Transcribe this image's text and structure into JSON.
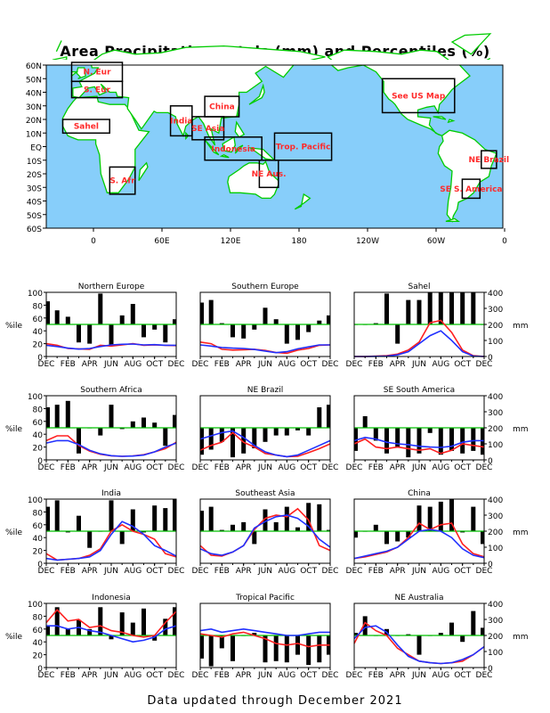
{
  "title": "Area Precipitation Totals (mm) and Percentiles (%)",
  "footer": "Data updated through December 2021",
  "colors": {
    "ocean": "#87cefa",
    "land": "#ffffff",
    "coast": "#00cc00",
    "region_box": "#000000",
    "region_label": "#ff2a2a",
    "bars": "#000000",
    "ref_line": "#00c000",
    "observed": "#ff2020",
    "normal": "#2030ff"
  },
  "map": {
    "lat_labels": [
      "60N",
      "50N",
      "40N",
      "30N",
      "20N",
      "10N",
      "EQ",
      "10S",
      "20S",
      "30S",
      "40S",
      "50S",
      "60S"
    ],
    "lon_labels": [
      "0",
      "60E",
      "120E",
      "180",
      "120W",
      "60W",
      "0"
    ],
    "regions": [
      {
        "label": "N. Eur",
        "lon": [
          -10,
          30
        ],
        "lat": [
          48,
          62
        ]
      },
      {
        "label": "S. Eur",
        "lon": [
          -10,
          30
        ],
        "lat": [
          36,
          48
        ]
      },
      {
        "label": "Sahel",
        "lon": [
          -17,
          20
        ],
        "lat": [
          10,
          20
        ]
      },
      {
        "label": "India",
        "lon": [
          68,
          85
        ],
        "lat": [
          8,
          30
        ]
      },
      {
        "label": "China",
        "lon": [
          95,
          122
        ],
        "lat": [
          22,
          37
        ]
      },
      {
        "label": "SE Asia",
        "lon": [
          85,
          110
        ],
        "lat": [
          5,
          22
        ]
      },
      {
        "label": "Indonesia",
        "lon": [
          95,
          140
        ],
        "lat": [
          -10,
          7
        ]
      },
      {
        "label": "Trop. Pacific",
        "lon": [
          150,
          195
        ],
        "lat": [
          -10,
          10
        ]
      },
      {
        "label": "NE Aus.",
        "lon": [
          138,
          153
        ],
        "lat": [
          -30,
          -10
        ]
      },
      {
        "label": "S. Afr",
        "lon": [
          20,
          40
        ],
        "lat": [
          -35,
          -15
        ]
      },
      {
        "label": "See US Map",
        "lon": [
          -125,
          -68
        ],
        "lat": [
          25,
          50
        ]
      },
      {
        "label": "NE Brazil",
        "lon": [
          -47,
          -35
        ],
        "lat": [
          -16,
          -3
        ]
      },
      {
        "label": "SE S. America",
        "lon": [
          -62,
          -48
        ],
        "lat": [
          -38,
          -24
        ]
      }
    ]
  },
  "axes": {
    "pct_ticks": [
      "0",
      "20",
      "40",
      "60",
      "80",
      "100"
    ],
    "mm_ticks": [
      "0",
      "100",
      "200",
      "300",
      "400"
    ],
    "pct_label": "%ile",
    "mm_label": "mm",
    "month_labels": [
      "DEC",
      "FEB",
      "APR",
      "JUN",
      "AUG",
      "OCT",
      "DEC"
    ]
  },
  "chart_data": [
    {
      "type": "bar",
      "title": "Northern Europe",
      "x": [
        "Dec",
        "Jan",
        "Feb",
        "Mar",
        "Apr",
        "May",
        "Jun",
        "Jul",
        "Aug",
        "Sep",
        "Oct",
        "Nov",
        "Dec"
      ],
      "percentile": [
        86,
        72,
        62,
        22,
        20,
        98,
        18,
        64,
        82,
        30,
        42,
        22,
        58
      ],
      "ylim_pct": [
        0,
        100
      ],
      "ylim_mm": [
        0,
        400
      ],
      "series": [
        {
          "name": "observed",
          "mm": [
            80,
            70,
            50,
            48,
            45,
            70,
            65,
            72,
            80,
            70,
            72,
            70,
            68
          ]
        },
        {
          "name": "normal",
          "mm": [
            70,
            62,
            52,
            46,
            50,
            62,
            72,
            76,
            78,
            72,
            74,
            70,
            70
          ]
        }
      ]
    },
    {
      "type": "bar",
      "title": "Southern Europe",
      "x": [
        "Dec",
        "Jan",
        "Feb",
        "Mar",
        "Apr",
        "May",
        "Jun",
        "Jul",
        "Aug",
        "Sep",
        "Oct",
        "Nov",
        "Dec"
      ],
      "percentile": [
        84,
        88,
        52,
        30,
        28,
        42,
        76,
        58,
        20,
        26,
        38,
        56,
        64
      ],
      "ylim_pct": [
        0,
        100
      ],
      "ylim_mm": [
        0,
        400
      ],
      "series": [
        {
          "name": "observed",
          "mm": [
            90,
            80,
            45,
            40,
            42,
            45,
            38,
            25,
            20,
            40,
            50,
            70,
            72
          ]
        },
        {
          "name": "normal",
          "mm": [
            72,
            65,
            56,
            52,
            50,
            44,
            34,
            24,
            30,
            48,
            60,
            72,
            72
          ]
        }
      ]
    },
    {
      "type": "bar",
      "title": "Sahel",
      "x": [
        "Dec",
        "Jan",
        "Feb",
        "Mar",
        "Apr",
        "May",
        "Jun",
        "Jul",
        "Aug",
        "Sep",
        "Oct",
        "Nov",
        "Dec"
      ],
      "percentile": [
        50,
        50,
        52,
        98,
        20,
        88,
        88,
        100,
        100,
        100,
        100,
        100,
        50
      ],
      "ylim_pct": [
        0,
        100
      ],
      "ylim_mm": [
        0,
        400
      ],
      "series": [
        {
          "name": "observed",
          "mm": [
            0,
            0,
            2,
            5,
            15,
            40,
            90,
            210,
            225,
            150,
            40,
            5,
            0
          ]
        },
        {
          "name": "normal",
          "mm": [
            0,
            0,
            1,
            3,
            10,
            30,
            80,
            130,
            160,
            100,
            30,
            3,
            0
          ]
        }
      ]
    },
    {
      "type": "bar",
      "title": "Southern Africa",
      "x": [
        "Dec",
        "Jan",
        "Feb",
        "Mar",
        "Apr",
        "May",
        "Jun",
        "Jul",
        "Aug",
        "Sep",
        "Oct",
        "Nov",
        "Dec"
      ],
      "percentile": [
        82,
        86,
        92,
        10,
        50,
        38,
        86,
        48,
        60,
        66,
        58,
        22,
        70
      ],
      "ylim_pct": [
        0,
        100
      ],
      "ylim_mm": [
        0,
        400
      ],
      "series": [
        {
          "name": "observed",
          "mm": [
            120,
            150,
            150,
            90,
            55,
            35,
            25,
            22,
            25,
            32,
            50,
            70,
            110
          ]
        },
        {
          "name": "normal",
          "mm": [
            105,
            120,
            120,
            95,
            60,
            38,
            26,
            22,
            24,
            30,
            50,
            80,
            105
          ]
        }
      ]
    },
    {
      "type": "bar",
      "title": "NE Brazil",
      "x": [
        "Dec",
        "Jan",
        "Feb",
        "Mar",
        "Apr",
        "May",
        "Jun",
        "Jul",
        "Aug",
        "Sep",
        "Oct",
        "Nov",
        "Dec"
      ],
      "percentile": [
        8,
        16,
        28,
        4,
        10,
        18,
        28,
        38,
        38,
        46,
        38,
        82,
        86
      ],
      "ylim_pct": [
        0,
        100
      ],
      "ylim_mm": [
        0,
        400
      ],
      "series": [
        {
          "name": "observed",
          "mm": [
            60,
            90,
            110,
            170,
            110,
            80,
            40,
            30,
            20,
            22,
            45,
            70,
            100
          ]
        },
        {
          "name": "normal",
          "mm": [
            130,
            150,
            170,
            180,
            140,
            90,
            50,
            30,
            20,
            30,
            60,
            90,
            120
          ]
        }
      ]
    },
    {
      "type": "bar",
      "title": "SE South America",
      "x": [
        "Dec",
        "Jan",
        "Feb",
        "Mar",
        "Apr",
        "May",
        "Jun",
        "Jul",
        "Aug",
        "Sep",
        "Oct",
        "Nov",
        "Dec"
      ],
      "percentile": [
        14,
        68,
        30,
        10,
        20,
        4,
        10,
        42,
        8,
        14,
        10,
        14,
        8
      ],
      "ylim_pct": [
        0,
        100
      ],
      "ylim_mm": [
        0,
        400
      ],
      "series": [
        {
          "name": "observed",
          "mm": [
            100,
            130,
            80,
            70,
            80,
            70,
            60,
            70,
            40,
            60,
            100,
            90,
            80
          ]
        },
        {
          "name": "normal",
          "mm": [
            120,
            140,
            130,
            110,
            100,
            95,
            85,
            80,
            78,
            85,
            110,
            120,
            120
          ]
        }
      ]
    },
    {
      "type": "bar",
      "title": "India",
      "x": [
        "Dec",
        "Jan",
        "Feb",
        "Mar",
        "Apr",
        "May",
        "Jun",
        "Jul",
        "Aug",
        "Sep",
        "Oct",
        "Nov",
        "Dec"
      ],
      "percentile": [
        88,
        98,
        48,
        74,
        24,
        50,
        98,
        30,
        84,
        48,
        90,
        86,
        100
      ],
      "ylim_pct": [
        0,
        100
      ],
      "ylim_mm": [
        0,
        400
      ],
      "series": [
        {
          "name": "observed",
          "mm": [
            60,
            20,
            25,
            30,
            50,
            90,
            200,
            240,
            200,
            180,
            150,
            60,
            40
          ]
        },
        {
          "name": "normal",
          "mm": [
            30,
            20,
            25,
            30,
            40,
            80,
            180,
            260,
            230,
            180,
            110,
            80,
            45
          ]
        }
      ]
    },
    {
      "type": "bar",
      "title": "Southeast Asia",
      "x": [
        "Dec",
        "Jan",
        "Feb",
        "Mar",
        "Apr",
        "May",
        "Jun",
        "Jul",
        "Aug",
        "Sep",
        "Oct",
        "Nov",
        "Dec"
      ],
      "percentile": [
        82,
        88,
        52,
        60,
        64,
        30,
        84,
        64,
        88,
        56,
        94,
        92,
        52
      ],
      "ylim_pct": [
        0,
        100
      ],
      "ylim_mm": [
        0,
        400
      ],
      "series": [
        {
          "name": "observed",
          "mm": [
            110,
            50,
            45,
            70,
            110,
            210,
            280,
            300,
            290,
            340,
            270,
            110,
            80
          ]
        },
        {
          "name": "normal",
          "mm": [
            90,
            60,
            50,
            70,
            110,
            220,
            260,
            290,
            300,
            280,
            230,
            150,
            100
          ]
        }
      ]
    },
    {
      "type": "bar",
      "title": "China",
      "x": [
        "Dec",
        "Jan",
        "Feb",
        "Mar",
        "Apr",
        "May",
        "Jun",
        "Jul",
        "Aug",
        "Sep",
        "Oct",
        "Nov",
        "Dec"
      ],
      "percentile": [
        40,
        50,
        60,
        30,
        34,
        40,
        90,
        88,
        96,
        100,
        48,
        88,
        30
      ],
      "ylim_pct": [
        0,
        100
      ],
      "ylim_mm": [
        0,
        400
      ],
      "series": [
        {
          "name": "observed",
          "mm": [
            30,
            40,
            55,
            70,
            100,
            160,
            250,
            210,
            240,
            250,
            120,
            60,
            40
          ]
        },
        {
          "name": "normal",
          "mm": [
            30,
            45,
            60,
            75,
            100,
            150,
            200,
            210,
            200,
            160,
            90,
            50,
            35
          ]
        }
      ]
    },
    {
      "type": "bar",
      "title": "Indonesia",
      "x": [
        "Dec",
        "Jan",
        "Feb",
        "Mar",
        "Apr",
        "May",
        "Jun",
        "Jul",
        "Aug",
        "Sep",
        "Oct",
        "Nov",
        "Dec"
      ],
      "percentile": [
        64,
        94,
        60,
        74,
        60,
        94,
        44,
        86,
        70,
        92,
        42,
        76,
        94
      ],
      "ylim_pct": [
        0,
        100
      ],
      "ylim_mm": [
        0,
        400
      ],
      "series": [
        {
          "name": "observed",
          "mm": [
            280,
            360,
            290,
            300,
            250,
            260,
            230,
            220,
            200,
            190,
            200,
            280,
            350
          ]
        },
        {
          "name": "normal",
          "mm": [
            260,
            260,
            240,
            250,
            230,
            220,
            200,
            180,
            160,
            170,
            190,
            240,
            260
          ]
        }
      ]
    },
    {
      "type": "bar",
      "title": "Tropical Pacific",
      "x": [
        "Dec",
        "Jan",
        "Feb",
        "Mar",
        "Apr",
        "May",
        "Jun",
        "Jul",
        "Aug",
        "Sep",
        "Oct",
        "Nov",
        "Dec"
      ],
      "percentile": [
        14,
        2,
        30,
        10,
        50,
        54,
        8,
        10,
        8,
        20,
        4,
        8,
        20
      ],
      "ylim_pct": [
        0,
        100
      ],
      "ylim_mm": [
        0,
        400
      ],
      "series": [
        {
          "name": "observed",
          "mm": [
            210,
            200,
            190,
            210,
            220,
            200,
            180,
            150,
            140,
            150,
            130,
            140,
            140
          ]
        },
        {
          "name": "normal",
          "mm": [
            230,
            240,
            220,
            230,
            240,
            230,
            220,
            210,
            200,
            200,
            210,
            220,
            220
          ]
        }
      ]
    },
    {
      "type": "bar",
      "title": "NE Australia",
      "x": [
        "Dec",
        "Jan",
        "Feb",
        "Mar",
        "Apr",
        "May",
        "Jun",
        "Jul",
        "Aug",
        "Sep",
        "Oct",
        "Nov",
        "Dec"
      ],
      "percentile": [
        54,
        80,
        50,
        60,
        50,
        52,
        20,
        50,
        54,
        70,
        40,
        88,
        62
      ],
      "ylim_pct": [
        0,
        100
      ],
      "ylim_mm": [
        0,
        400
      ],
      "series": [
        {
          "name": "observed",
          "mm": [
            150,
            280,
            230,
            200,
            120,
            80,
            40,
            30,
            25,
            30,
            40,
            80,
            130
          ]
        },
        {
          "name": "normal",
          "mm": [
            180,
            250,
            260,
            220,
            140,
            70,
            40,
            30,
            25,
            30,
            50,
            80,
            130
          ]
        }
      ]
    }
  ]
}
